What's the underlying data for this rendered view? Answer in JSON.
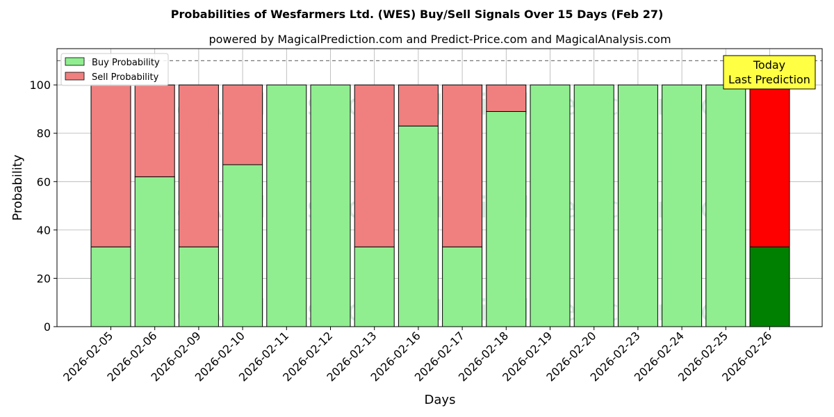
{
  "chart_data": {
    "type": "bar",
    "stacked": true,
    "title": "Probabilities of Wesfarmers Ltd. (WES) Buy/Sell Signals Over 15 Days (Feb 27)",
    "subtitle": "powered by MagicalPrediction.com and Predict-Price.com and MagicalAnalysis.com",
    "xlabel": "Days",
    "ylabel": "Probability",
    "ylim": [
      0,
      115
    ],
    "yticks": [
      0,
      20,
      40,
      60,
      80,
      100
    ],
    "threshold_line": 110,
    "grid": true,
    "legend_position": "top-left",
    "categories": [
      "2026-02-05",
      "2026-02-06",
      "2026-02-09",
      "2026-02-10",
      "2026-02-11",
      "2026-02-12",
      "2026-02-13",
      "2026-02-16",
      "2026-02-17",
      "2026-02-18",
      "2026-02-19",
      "2026-02-20",
      "2026-02-23",
      "2026-02-24",
      "2026-02-25",
      "2026-02-26"
    ],
    "series": [
      {
        "name": "Buy Probability",
        "color": "#90ee90",
        "last_color": "#008000",
        "values": [
          33,
          62,
          33,
          67,
          100,
          100,
          33,
          83,
          33,
          89,
          100,
          100,
          100,
          100,
          100,
          33
        ]
      },
      {
        "name": "Sell Probability",
        "color": "#f08080",
        "last_color": "#ff0000",
        "values": [
          67,
          38,
          67,
          33,
          0,
          0,
          67,
          17,
          67,
          11,
          0,
          0,
          0,
          0,
          0,
          67
        ]
      }
    ],
    "annotation": {
      "line1": "Today",
      "line2": "Last Prediction",
      "box_color": "#ffff44"
    },
    "watermarks": [
      "MagicalAnalysis.com",
      "MagicalPrediction.com"
    ]
  }
}
